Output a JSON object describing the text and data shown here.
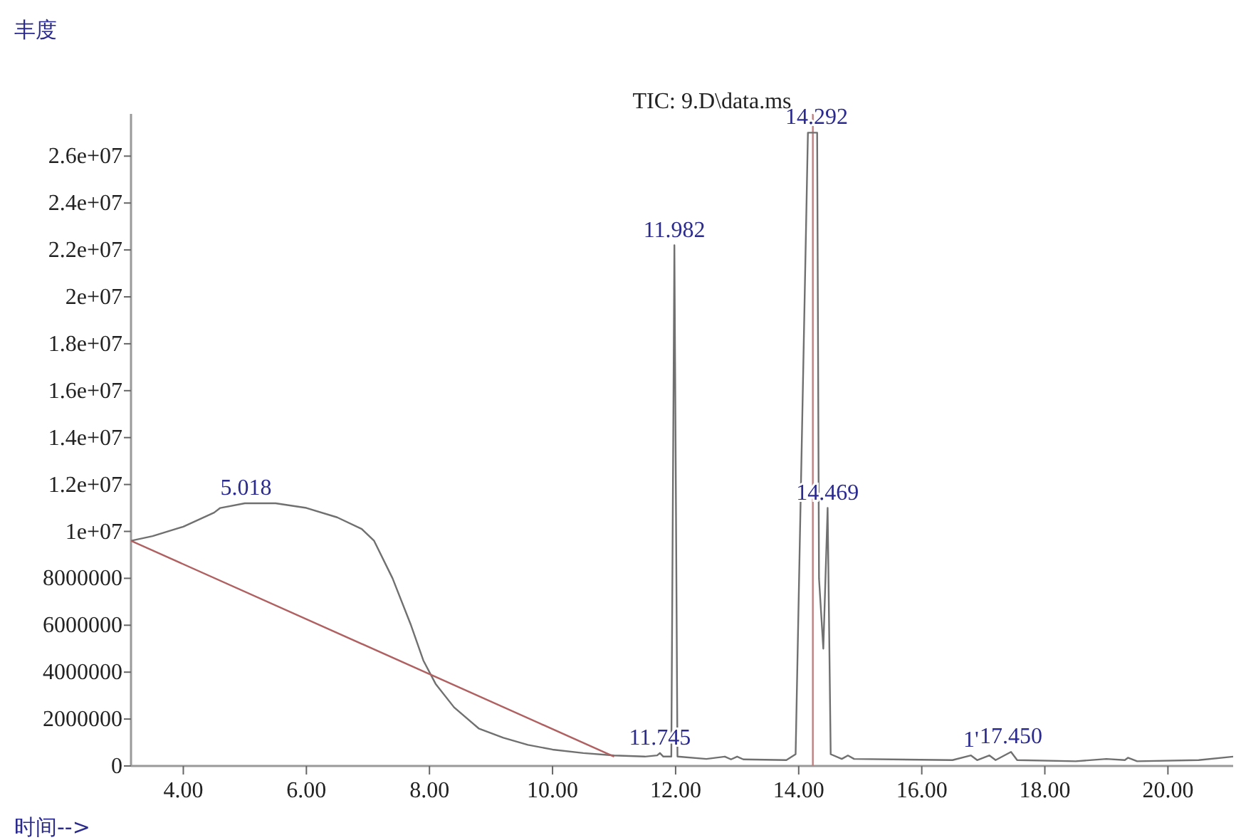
{
  "chart_data": {
    "type": "line",
    "title": "TIC: 9.D\\data.ms",
    "xlabel": "时间-->",
    "ylabel": "丰度",
    "xlim": [
      3.15,
      21.06
    ],
    "ylim": [
      0,
      27800000
    ],
    "xticks": [
      {
        "value": 4,
        "label": "4.00"
      },
      {
        "value": 6,
        "label": "6.00"
      },
      {
        "value": 8,
        "label": "8.00"
      },
      {
        "value": 10,
        "label": "10.00"
      },
      {
        "value": 12,
        "label": "12.00"
      },
      {
        "value": 14,
        "label": "14.00"
      },
      {
        "value": 16,
        "label": "16.00"
      },
      {
        "value": 18,
        "label": "18.00"
      },
      {
        "value": 20,
        "label": "20.00"
      }
    ],
    "yticks": [
      0,
      2000000,
      4000000,
      6000000,
      8000000,
      {
        "value": 10000000,
        "label": "1e+07"
      },
      {
        "value": 12000000,
        "label": "1.2e+07"
      },
      {
        "value": 14000000,
        "label": "1.4e+07"
      },
      {
        "value": 16000000,
        "label": "1.6e+07"
      },
      {
        "value": 18000000,
        "label": "1.8e+07"
      },
      {
        "value": 20000000,
        "label": "2e+07"
      },
      {
        "value": 22000000,
        "label": "2.2e+07"
      },
      {
        "value": 24000000,
        "label": "2.4e+07"
      },
      {
        "value": 26000000,
        "label": "2.6e+07"
      }
    ],
    "grid": false,
    "marker": "none",
    "line_style": "solid",
    "series": [
      {
        "color": "#707070",
        "x": [
          3.15,
          3.5,
          4.0,
          4.5,
          4.6,
          5.0,
          5.5,
          6.0,
          6.5,
          6.9,
          7.1,
          7.4,
          7.7,
          7.9,
          8.1,
          8.4,
          8.8,
          9.2,
          9.6,
          10.0,
          10.5,
          11.0,
          11.5,
          11.7,
          11.745,
          11.8,
          11.93,
          11.98,
          12.03,
          12.5,
          12.8,
          12.9,
          13.0,
          13.1,
          13.8,
          13.95,
          14.15,
          14.3,
          14.33,
          14.4,
          14.47,
          14.52,
          14.7,
          14.8,
          14.9,
          16.5,
          16.8,
          16.9,
          17.1,
          17.2,
          17.45,
          17.55,
          18.5,
          19.0,
          19.3,
          19.35,
          19.5,
          20.5,
          21.06
        ],
        "values": [
          9600000,
          9800000,
          10200000,
          10800000,
          11000000,
          11200000,
          11200000,
          11000000,
          10600000,
          10100000,
          9600000,
          8000000,
          6000000,
          4500000,
          3500000,
          2500000,
          1600000,
          1200000,
          900000,
          700000,
          550000,
          450000,
          400000,
          450000,
          550000,
          400000,
          400000,
          22200000,
          400000,
          300000,
          400000,
          280000,
          400000,
          280000,
          250000,
          500000,
          27000000,
          27000000,
          8000000,
          5000000,
          11000000,
          500000,
          300000,
          450000,
          300000,
          250000,
          450000,
          250000,
          450000,
          250000,
          600000,
          250000,
          200000,
          300000,
          250000,
          350000,
          200000,
          250000,
          400000
        ]
      },
      {
        "color": "#b06060",
        "x": [
          3.15,
          11.0
        ],
        "values": [
          9600000,
          400000
        ]
      }
    ],
    "ref_lines": [
      {
        "axis": "x",
        "value": 14.23,
        "color": "#c08080"
      }
    ],
    "annotations": [
      {
        "text": "5.018",
        "x": 5.018,
        "y": 11200000
      },
      {
        "text": "11.745",
        "x": 11.745,
        "y": 550000
      },
      {
        "text": "11.982",
        "x": 11.98,
        "y": 22200000
      },
      {
        "text": "14.292",
        "x": 14.292,
        "y": 27000000
      },
      {
        "text": "14.469",
        "x": 14.469,
        "y": 11000000
      },
      {
        "text": "1'",
        "x": 16.8,
        "y": 450000
      },
      {
        "text": "17.450",
        "x": 17.45,
        "y": 600000
      }
    ]
  }
}
